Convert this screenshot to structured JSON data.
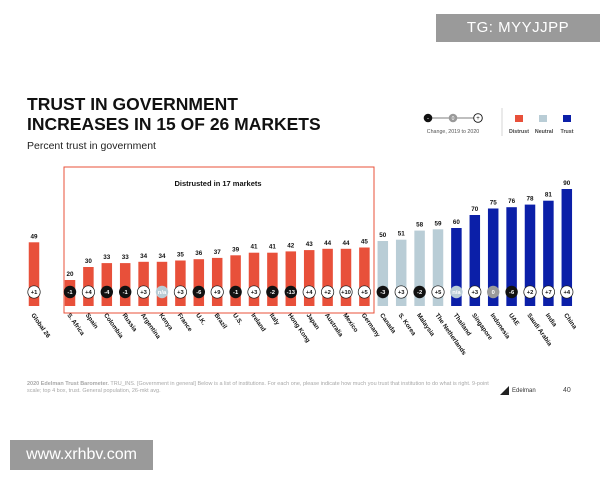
{
  "badge": "TG: MYYJJPP",
  "title_line1": "TRUST IN GOVERNMENT",
  "title_line2": "INCREASES IN 15 OF 26 MARKETS",
  "subtitle": "Percent trust in government",
  "footnote": {
    "lead": "2020 Edelman Trust Barometer.",
    "body": " TRU_INS. [Government in general] Below is a list of institutions. For each one, please indicate how much you trust that institution to do what is right. 9-point scale; top 4 box, trust. General population, 26-mkt avg."
  },
  "page_number": "40",
  "brand": "Edelman",
  "watermark": "www.xrhbv.com",
  "legend": {
    "change_label": "Change, 2019 to 2020",
    "distrust": "Distrust",
    "neutral": "Neutral",
    "trust": "Trust",
    "colors": {
      "distrust": "#e8503a",
      "neutral": "#b9cdd6",
      "trust": "#0b1fa8",
      "change_neg": "#111111",
      "change_zero": "#9a9a9a",
      "change_pos": "#ffffff"
    }
  },
  "chart_data": {
    "type": "bar",
    "title": "Trust in government increases in 15 of 26 markets",
    "ylabel": "Percent trust in government",
    "ylim": [
      0,
      100
    ],
    "annotation": "Distrusted in 17 markets",
    "categories": [
      "Global 26",
      "S. Africa",
      "Spain",
      "Colombia",
      "Russia",
      "Argentina",
      "Kenya",
      "France",
      "U.K.",
      "Brazil",
      "U.S.",
      "Ireland",
      "Italy",
      "Hong Kong",
      "Japan",
      "Australia",
      "Mexico",
      "Germany",
      "Canada",
      "S. Korea",
      "Malaysia",
      "The Netherlands",
      "Thailand",
      "Singapore",
      "Indonesia",
      "UAE",
      "Saudi Arabia",
      "India",
      "China"
    ],
    "values": [
      49,
      20,
      30,
      33,
      33,
      34,
      34,
      35,
      36,
      37,
      39,
      41,
      41,
      42,
      43,
      44,
      44,
      45,
      50,
      51,
      58,
      59,
      60,
      70,
      75,
      76,
      78,
      81,
      90
    ],
    "levels": [
      "distrust",
      "distrust",
      "distrust",
      "distrust",
      "distrust",
      "distrust",
      "distrust",
      "distrust",
      "distrust",
      "distrust",
      "distrust",
      "distrust",
      "distrust",
      "distrust",
      "distrust",
      "distrust",
      "distrust",
      "distrust",
      "neutral",
      "neutral",
      "neutral",
      "neutral",
      "trust",
      "trust",
      "trust",
      "trust",
      "trust",
      "trust",
      "trust"
    ],
    "changes": [
      "+1",
      "-1",
      "+4",
      "-4",
      "-1",
      "+3",
      "n/a",
      "+3",
      "-6",
      "+9",
      "-1",
      "+3",
      "-2",
      "-13",
      "+4",
      "+2",
      "+10",
      "+5",
      "-3",
      "+3",
      "-2",
      "+5",
      "n/a",
      "+3",
      "0",
      "-6",
      "+2",
      "+7",
      "+4"
    ]
  }
}
